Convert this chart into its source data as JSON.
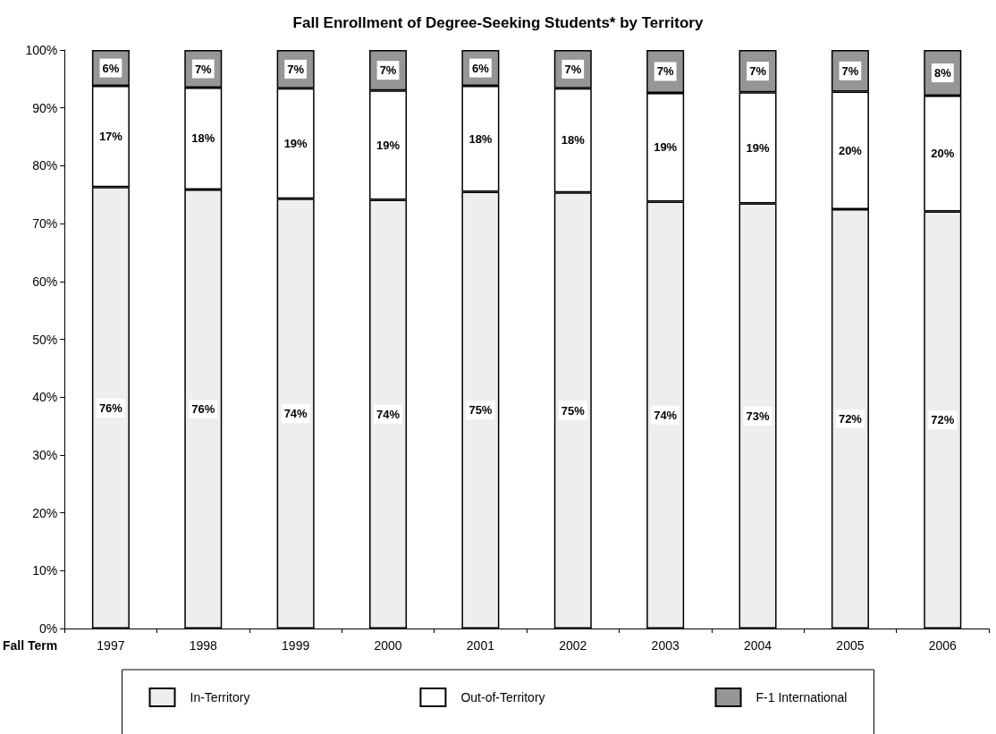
{
  "chart_data": {
    "type": "bar",
    "title": "Fall Enrollment of Degree-Seeking Students* by Territory",
    "xlabel": "Fall Term",
    "categories": [
      "1997",
      "1998",
      "1999",
      "2000",
      "2001",
      "2002",
      "2003",
      "2004",
      "2005",
      "2006"
    ],
    "stacked": true,
    "series": [
      {
        "name": "In-Territory",
        "color": "#eeeeee",
        "values": [
          76.3,
          75.9,
          74.3,
          74.1,
          75.5,
          75.4,
          73.8,
          73.5,
          72.5,
          72.1
        ],
        "value_labels": [
          "76%",
          "76%",
          "74%",
          "74%",
          "75%",
          "75%",
          "74%",
          "73%",
          "72%",
          "72%"
        ]
      },
      {
        "name": "Out-of-Territory",
        "color": "#ffffff",
        "values": [
          17.5,
          17.6,
          19.1,
          18.9,
          18.3,
          18.0,
          18.8,
          19.2,
          20.3,
          20.0
        ],
        "value_labels": [
          "17%",
          "18%",
          "19%",
          "19%",
          "18%",
          "18%",
          "19%",
          "19%",
          "20%",
          "20%"
        ]
      },
      {
        "name": "F-1 International",
        "color": "#969696",
        "values": [
          6.2,
          6.5,
          6.6,
          7.0,
          6.2,
          6.6,
          7.4,
          7.3,
          7.2,
          7.9
        ],
        "value_labels": [
          "6%",
          "7%",
          "7%",
          "7%",
          "6%",
          "7%",
          "7%",
          "7%",
          "7%",
          "8%"
        ]
      }
    ],
    "ylim": [
      0,
      100
    ],
    "yticks": [
      {
        "value": 0,
        "label": "0%"
      },
      {
        "value": 10,
        "label": "10%"
      },
      {
        "value": 20,
        "label": "20%"
      },
      {
        "value": 30,
        "label": "30%"
      },
      {
        "value": 40,
        "label": "40%"
      },
      {
        "value": 50,
        "label": "50%"
      },
      {
        "value": 60,
        "label": "60%"
      },
      {
        "value": 70,
        "label": "70%"
      },
      {
        "value": 80,
        "label": "80%"
      },
      {
        "value": 90,
        "label": "90%"
      },
      {
        "value": 100,
        "label": "100%"
      }
    ],
    "grid": false,
    "legend": "bottom"
  }
}
